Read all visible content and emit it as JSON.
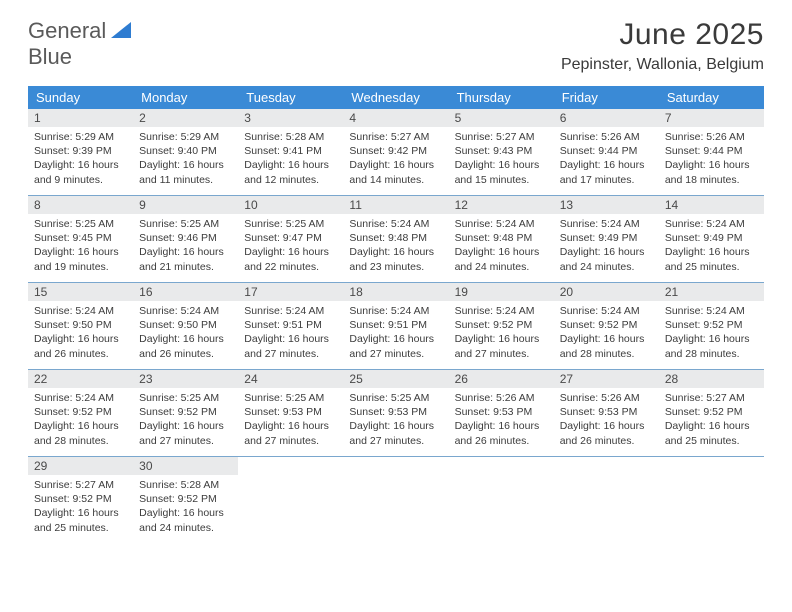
{
  "logo": {
    "line1": "General",
    "line2": "Blue"
  },
  "title": "June 2025",
  "location": "Pepinster, Wallonia, Belgium",
  "colors": {
    "header_bg": "#3a8ad6",
    "daynum_bg": "#e9eaeb",
    "row_border": "#7aa7ce",
    "text": "#3c3c3c",
    "logo_gray": "#5a5a5a",
    "logo_blue": "#2e7cd1"
  },
  "dow": [
    "Sunday",
    "Monday",
    "Tuesday",
    "Wednesday",
    "Thursday",
    "Friday",
    "Saturday"
  ],
  "days": [
    {
      "n": 1,
      "sr": "5:29 AM",
      "ss": "9:39 PM",
      "dl": "16 hours and 9 minutes."
    },
    {
      "n": 2,
      "sr": "5:29 AM",
      "ss": "9:40 PM",
      "dl": "16 hours and 11 minutes."
    },
    {
      "n": 3,
      "sr": "5:28 AM",
      "ss": "9:41 PM",
      "dl": "16 hours and 12 minutes."
    },
    {
      "n": 4,
      "sr": "5:27 AM",
      "ss": "9:42 PM",
      "dl": "16 hours and 14 minutes."
    },
    {
      "n": 5,
      "sr": "5:27 AM",
      "ss": "9:43 PM",
      "dl": "16 hours and 15 minutes."
    },
    {
      "n": 6,
      "sr": "5:26 AM",
      "ss": "9:44 PM",
      "dl": "16 hours and 17 minutes."
    },
    {
      "n": 7,
      "sr": "5:26 AM",
      "ss": "9:44 PM",
      "dl": "16 hours and 18 minutes."
    },
    {
      "n": 8,
      "sr": "5:25 AM",
      "ss": "9:45 PM",
      "dl": "16 hours and 19 minutes."
    },
    {
      "n": 9,
      "sr": "5:25 AM",
      "ss": "9:46 PM",
      "dl": "16 hours and 21 minutes."
    },
    {
      "n": 10,
      "sr": "5:25 AM",
      "ss": "9:47 PM",
      "dl": "16 hours and 22 minutes."
    },
    {
      "n": 11,
      "sr": "5:24 AM",
      "ss": "9:48 PM",
      "dl": "16 hours and 23 minutes."
    },
    {
      "n": 12,
      "sr": "5:24 AM",
      "ss": "9:48 PM",
      "dl": "16 hours and 24 minutes."
    },
    {
      "n": 13,
      "sr": "5:24 AM",
      "ss": "9:49 PM",
      "dl": "16 hours and 24 minutes."
    },
    {
      "n": 14,
      "sr": "5:24 AM",
      "ss": "9:49 PM",
      "dl": "16 hours and 25 minutes."
    },
    {
      "n": 15,
      "sr": "5:24 AM",
      "ss": "9:50 PM",
      "dl": "16 hours and 26 minutes."
    },
    {
      "n": 16,
      "sr": "5:24 AM",
      "ss": "9:50 PM",
      "dl": "16 hours and 26 minutes."
    },
    {
      "n": 17,
      "sr": "5:24 AM",
      "ss": "9:51 PM",
      "dl": "16 hours and 27 minutes."
    },
    {
      "n": 18,
      "sr": "5:24 AM",
      "ss": "9:51 PM",
      "dl": "16 hours and 27 minutes."
    },
    {
      "n": 19,
      "sr": "5:24 AM",
      "ss": "9:52 PM",
      "dl": "16 hours and 27 minutes."
    },
    {
      "n": 20,
      "sr": "5:24 AM",
      "ss": "9:52 PM",
      "dl": "16 hours and 28 minutes."
    },
    {
      "n": 21,
      "sr": "5:24 AM",
      "ss": "9:52 PM",
      "dl": "16 hours and 28 minutes."
    },
    {
      "n": 22,
      "sr": "5:24 AM",
      "ss": "9:52 PM",
      "dl": "16 hours and 28 minutes."
    },
    {
      "n": 23,
      "sr": "5:25 AM",
      "ss": "9:52 PM",
      "dl": "16 hours and 27 minutes."
    },
    {
      "n": 24,
      "sr": "5:25 AM",
      "ss": "9:53 PM",
      "dl": "16 hours and 27 minutes."
    },
    {
      "n": 25,
      "sr": "5:25 AM",
      "ss": "9:53 PM",
      "dl": "16 hours and 27 minutes."
    },
    {
      "n": 26,
      "sr": "5:26 AM",
      "ss": "9:53 PM",
      "dl": "16 hours and 26 minutes."
    },
    {
      "n": 27,
      "sr": "5:26 AM",
      "ss": "9:53 PM",
      "dl": "16 hours and 26 minutes."
    },
    {
      "n": 28,
      "sr": "5:27 AM",
      "ss": "9:52 PM",
      "dl": "16 hours and 25 minutes."
    },
    {
      "n": 29,
      "sr": "5:27 AM",
      "ss": "9:52 PM",
      "dl": "16 hours and 25 minutes."
    },
    {
      "n": 30,
      "sr": "5:28 AM",
      "ss": "9:52 PM",
      "dl": "16 hours and 24 minutes."
    }
  ],
  "labels": {
    "sunrise": "Sunrise: ",
    "sunset": "Sunset: ",
    "daylight": "Daylight: "
  },
  "layout": {
    "start_dow": 0,
    "cols": 7
  }
}
